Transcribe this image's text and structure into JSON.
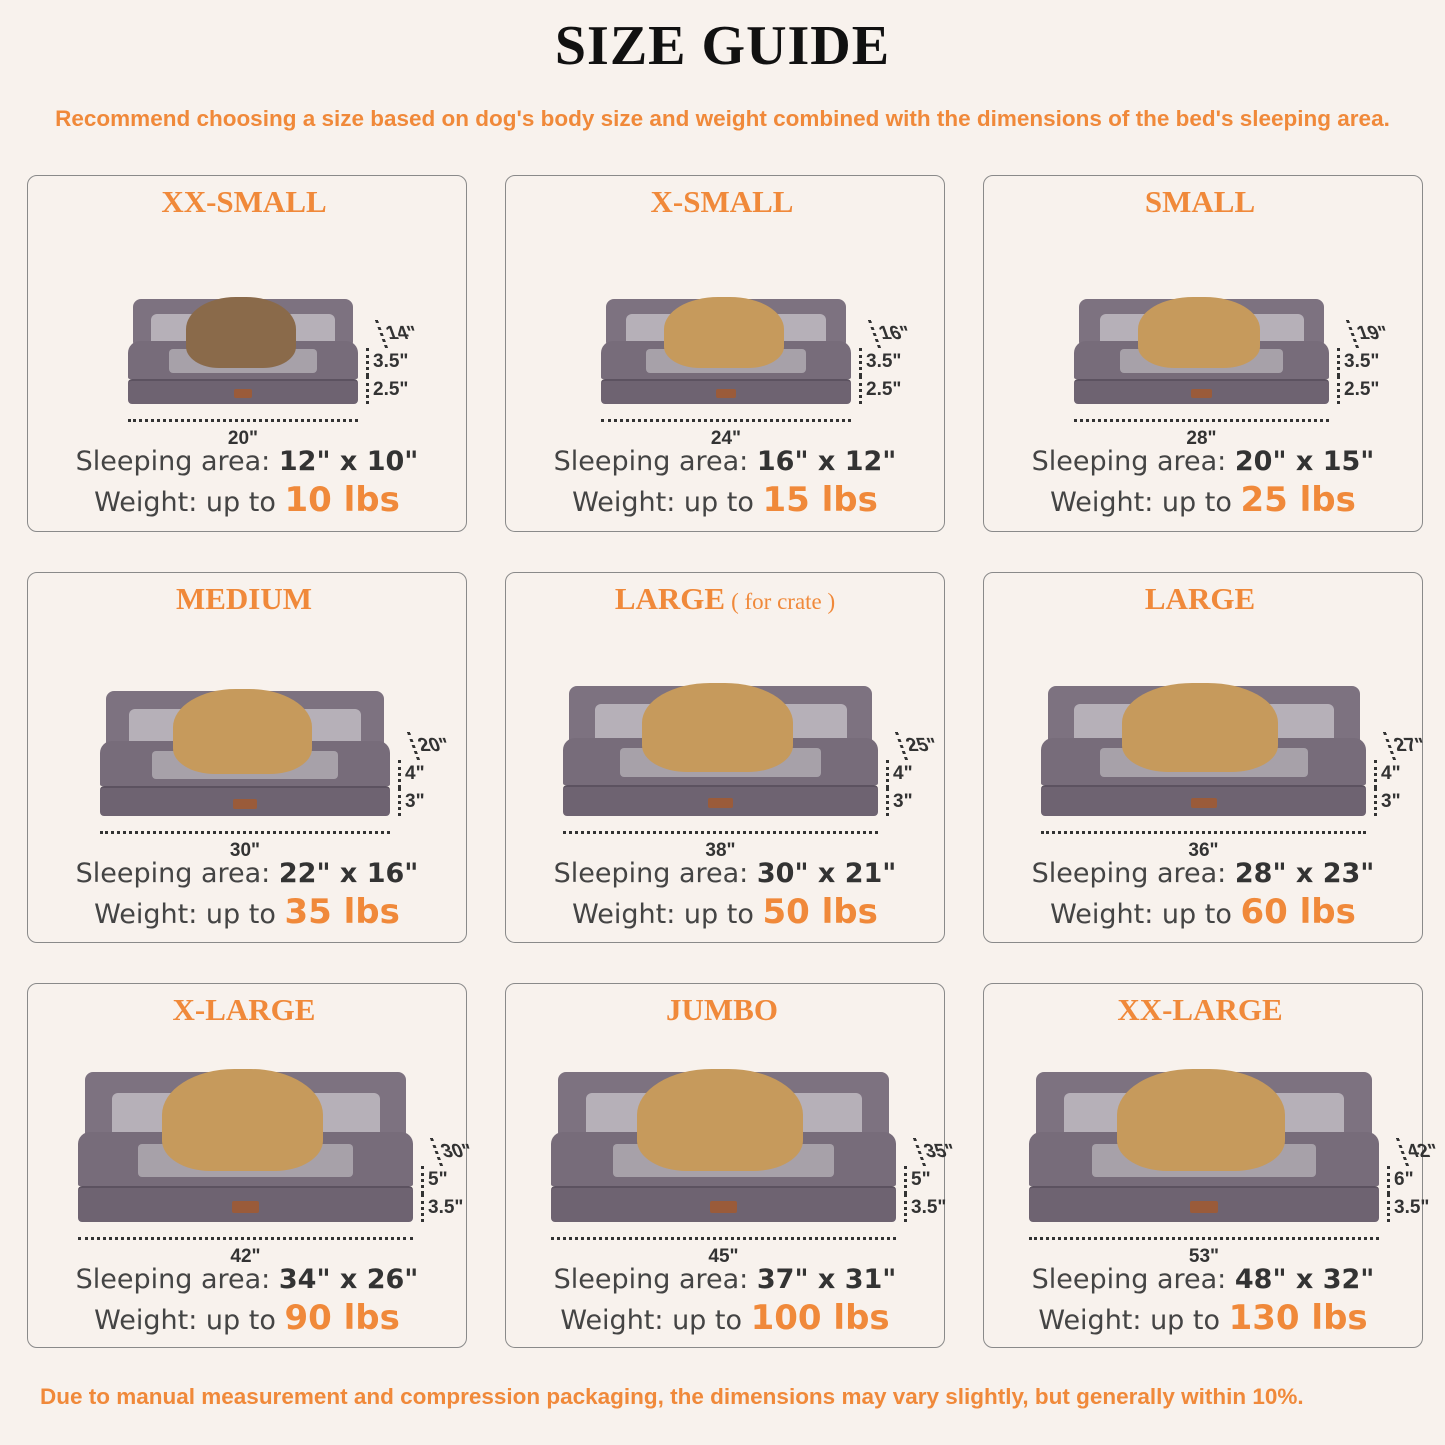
{
  "title": "SIZE GUIDE",
  "subtitle": "Recommend choosing a size based on dog's body size and weight combined with the dimensions of the bed's sleeping area.",
  "footer": "Due to manual measurement and compression packaging, the dimensions may vary slightly, but generally within 10%.",
  "labels": {
    "sleeping": "Sleeping area:",
    "weight": "Weight: up to"
  },
  "colors": {
    "accent": "#f0893a",
    "background": "#f8f2ed",
    "bed": "#776c7a"
  },
  "sizes": [
    {
      "name": "XX-SMALL",
      "note": "",
      "width": "20\"",
      "depth": "14\"",
      "h1": "3.5\"",
      "h2": "2.5\"",
      "area": "12\" x 10\"",
      "weight": "10 lbs",
      "pet": "cat"
    },
    {
      "name": "X-SMALL",
      "note": "",
      "width": "24\"",
      "depth": "16\"",
      "h1": "3.5\"",
      "h2": "2.5\"",
      "area": "16\" x 12\"",
      "weight": "15 lbs",
      "pet": "dog"
    },
    {
      "name": "SMALL",
      "note": "",
      "width": "28\"",
      "depth": "19\"",
      "h1": "3.5\"",
      "h2": "2.5\"",
      "area": "20\" x 15\"",
      "weight": "25 lbs",
      "pet": "dog"
    },
    {
      "name": "MEDIUM",
      "note": "",
      "width": "30\"",
      "depth": "20\"",
      "h1": "4\"",
      "h2": "3\"",
      "area": "22\" x 16\"",
      "weight": "35 lbs",
      "pet": "dog"
    },
    {
      "name": "LARGE",
      "note": "( for crate )",
      "width": "38\"",
      "depth": "25\"",
      "h1": "4\"",
      "h2": "3\"",
      "area": "30\" x 21\"",
      "weight": "50 lbs",
      "pet": "dog"
    },
    {
      "name": "LARGE",
      "note": "",
      "width": "36\"",
      "depth": "27\"",
      "h1": "4\"",
      "h2": "3\"",
      "area": "28\" x 23\"",
      "weight": "60 lbs",
      "pet": "dog"
    },
    {
      "name": "X-LARGE",
      "note": "",
      "width": "42\"",
      "depth": "30\"",
      "h1": "5\"",
      "h2": "3.5\"",
      "area": "34\" x 26\"",
      "weight": "90 lbs",
      "pet": "dog"
    },
    {
      "name": "JUMBO",
      "note": "",
      "width": "45\"",
      "depth": "35\"",
      "h1": "5\"",
      "h2": "3.5\"",
      "area": "37\" x 31\"",
      "weight": "100 lbs",
      "pet": "dog"
    },
    {
      "name": "XX-LARGE",
      "note": "",
      "width": "53\"",
      "depth": "42\"",
      "h1": "6\"",
      "h2": "3.5\"",
      "area": "48\" x 32\"",
      "weight": "130 lbs",
      "pet": "dog"
    }
  ]
}
